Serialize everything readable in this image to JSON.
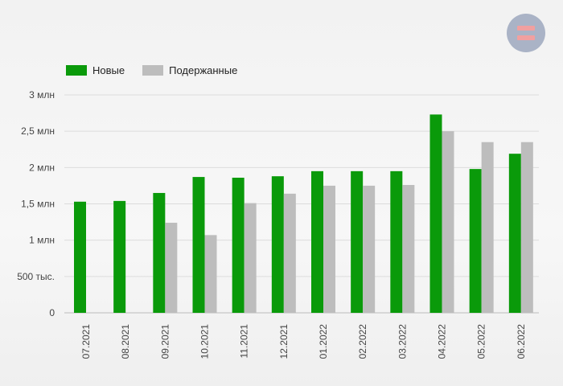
{
  "logo": {
    "icon": "equals-logo-icon"
  },
  "chart_data": {
    "type": "bar",
    "title": "",
    "xlabel": "",
    "ylabel": "",
    "categories": [
      "07.2021",
      "08.2021",
      "09.2021",
      "10.2021",
      "11.2021",
      "12.2021",
      "01.2022",
      "02.2022",
      "03.2022",
      "04.2022",
      "05.2022",
      "06.2022"
    ],
    "series": [
      {
        "name": "Новые",
        "color": "#0a9a0a",
        "values": [
          1.53,
          1.54,
          1.65,
          1.87,
          1.86,
          1.88,
          1.95,
          1.95,
          1.95,
          2.73,
          1.98,
          2.19
        ]
      },
      {
        "name": "Подержанные",
        "color": "#bdbdbd",
        "values": [
          null,
          null,
          1.24,
          1.07,
          1.51,
          1.64,
          1.75,
          1.75,
          1.76,
          2.5,
          2.35,
          2.35
        ]
      }
    ],
    "ylim": [
      0,
      3
    ],
    "yticks": [
      {
        "value": 0,
        "label": "0"
      },
      {
        "value": 0.5,
        "label": "500 тыс."
      },
      {
        "value": 1,
        "label": "1 млн"
      },
      {
        "value": 1.5,
        "label": "1,5 млн"
      },
      {
        "value": 2,
        "label": "2 млн"
      },
      {
        "value": 2.5,
        "label": "2,5 млн"
      },
      {
        "value": 3,
        "label": "3 млн"
      }
    ],
    "grid": true,
    "legend_position": "top-left"
  }
}
